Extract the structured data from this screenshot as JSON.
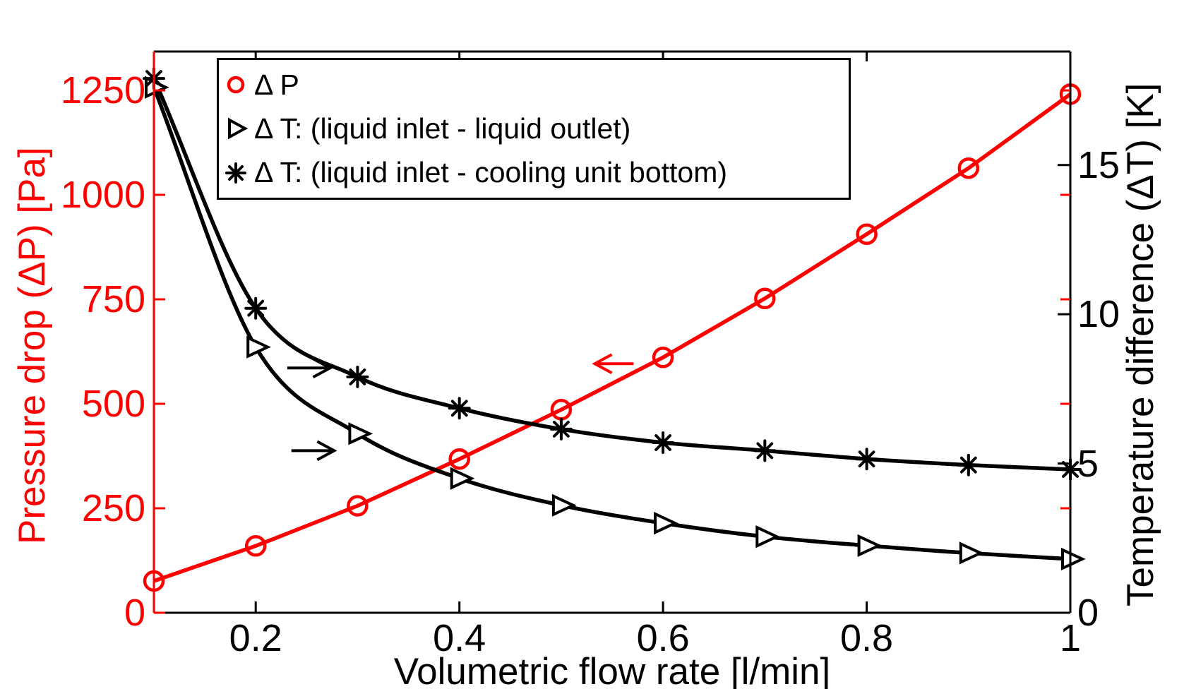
{
  "figure": {
    "background": "#ffffff",
    "frame_color": "#000000"
  },
  "colors": {
    "left_axis": "#ff0000",
    "right_axis": "#000000",
    "x_axis": "#000000"
  },
  "chart_data": {
    "type": "line",
    "x": [
      0.1,
      0.2,
      0.3,
      0.4,
      0.5,
      0.6,
      0.7,
      0.8,
      0.9,
      1.0
    ],
    "series": [
      {
        "id": "dP",
        "name": "Δ P",
        "axis": "left",
        "color": "#ff0000",
        "marker": "circle",
        "curve": "linear",
        "values": [
          76,
          160,
          256,
          368,
          486,
          611,
          752,
          906,
          1064,
          1241
        ]
      },
      {
        "id": "dT_out",
        "name": "Δ T: (liquid inlet - liquid outlet)",
        "axis": "right",
        "color": "#000000",
        "marker": "triangle-right",
        "curve": "smooth",
        "values": [
          17.6,
          8.9,
          6.0,
          4.5,
          3.6,
          3.0,
          2.55,
          2.25,
          2.0,
          1.8
        ]
      },
      {
        "id": "dT_bottom",
        "name": "Δ T: (liquid inlet - cooling unit bottom)",
        "axis": "right",
        "color": "#000000",
        "marker": "asterisk",
        "curve": "smooth",
        "values": [
          17.9,
          10.2,
          7.9,
          6.85,
          6.15,
          5.7,
          5.43,
          5.15,
          4.95,
          4.8
        ]
      }
    ],
    "xlabel": "Volumetric flow rate [l/min]",
    "ylabel_left": "Pressure drop (ΔP) [Pa]",
    "ylabel_right": "Temperature difference (ΔT) [K]",
    "xlim": [
      0.1,
      1.0
    ],
    "x_ticks": [
      0.2,
      0.4,
      0.6,
      0.8,
      1
    ],
    "x_tick_labels": [
      "0.2",
      "0.4",
      "0.6",
      "0.8",
      "1"
    ],
    "yleft_lim": [
      0,
      1343
    ],
    "yleft_ticks": [
      0,
      250,
      500,
      750,
      1000,
      1250
    ],
    "yleft_tick_labels": [
      "0",
      "250",
      "500",
      "750",
      "1000",
      "1250"
    ],
    "yright_lim": [
      0,
      18.8
    ],
    "yright_ticks": [
      0,
      5,
      10,
      15
    ],
    "yright_tick_labels": [
      "0",
      "5",
      "10",
      "15"
    ],
    "grid": false,
    "legend_position": "top-left-inside",
    "annotations": {
      "arrows": [
        {
          "id": "arrow-to-right-axis-upper",
          "axis": "right",
          "color": "#000000",
          "y": 8.2,
          "x_tail": 0.231,
          "x_head": 0.273
        },
        {
          "id": "arrow-to-right-axis-lower",
          "axis": "right",
          "color": "#000000",
          "y": 5.43,
          "x_tail": 0.235,
          "x_head": 0.277
        },
        {
          "id": "arrow-to-left-axis",
          "axis": "left",
          "color": "#ff0000",
          "y": 596,
          "x_tail": 0.571,
          "x_head": 0.533
        }
      ]
    }
  },
  "legend": {
    "items": [
      {
        "marker": "circle",
        "color": "#ff0000",
        "label": "Δ P"
      },
      {
        "marker": "triangle-right",
        "color": "#000000",
        "label": "Δ T: (liquid inlet - liquid outlet)"
      },
      {
        "marker": "asterisk",
        "color": "#000000",
        "label": "Δ T: (liquid inlet - cooling unit bottom)"
      }
    ]
  }
}
